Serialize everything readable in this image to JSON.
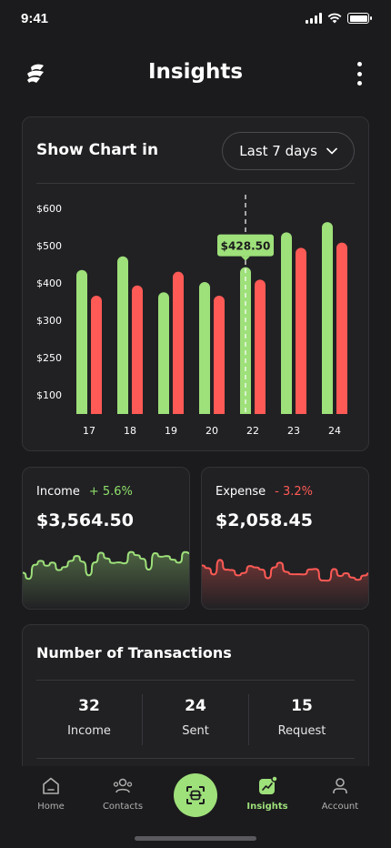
{
  "status_bar": {
    "time": "9:41"
  },
  "header": {
    "title": "Insights",
    "logo_icon": "brand-logo-icon",
    "menu_icon": "more-vertical-icon"
  },
  "chart_section": {
    "title": "Show Chart in",
    "period": "Last 7 days",
    "highlight_label": "$428.50"
  },
  "chart_data": {
    "type": "bar",
    "categories": [
      "17",
      "18",
      "19",
      "20",
      "22",
      "23",
      "24"
    ],
    "y_tick_labels": [
      "$600",
      "$500",
      "$400",
      "$300",
      "$250",
      "$100"
    ],
    "series": [
      {
        "values": [
          420,
          460,
          355,
          385,
          428.5,
          530,
          560
        ],
        "color": "#9ee07a"
      },
      {
        "values": [
          345,
          375,
          415,
          345,
          392,
          485,
          500
        ],
        "color": "#ff5a55"
      }
    ],
    "highlight": {
      "category": "22",
      "value": 428.5,
      "label": "$428.50"
    },
    "grid": false,
    "legend": "none"
  },
  "income": {
    "label": "Income",
    "change": "+ 5.6%",
    "amount": "$3,564.50",
    "color": "#9ee07a"
  },
  "expense": {
    "label": "Expense",
    "change": "- 3.2%",
    "amount": "$2,058.45",
    "color": "#ff5a55"
  },
  "transactions": {
    "title": "Number of Transactions",
    "stats": [
      {
        "value": "32",
        "label": "Income"
      },
      {
        "value": "24",
        "label": "Sent"
      },
      {
        "value": "15",
        "label": "Request"
      }
    ]
  },
  "tab_bar": {
    "items": [
      {
        "label": "Home",
        "icon": "home-icon"
      },
      {
        "label": "Contacts",
        "icon": "contacts-icon"
      },
      {
        "label": "Insights",
        "icon": "insights-icon"
      },
      {
        "label": "Account",
        "icon": "account-icon"
      }
    ],
    "center_icon": "scan-icon",
    "active": "Insights",
    "accent": "#9ee07a"
  }
}
